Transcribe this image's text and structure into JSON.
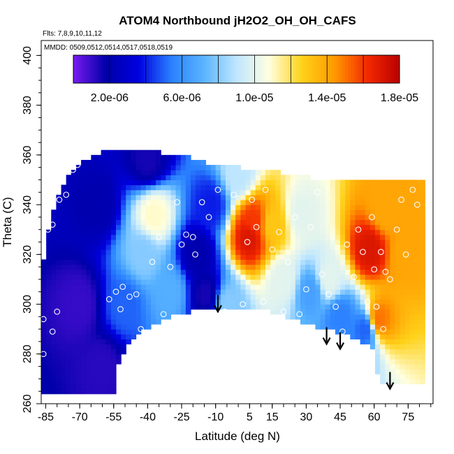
{
  "chart_data": {
    "type": "heatmap",
    "title": "ATOM4 Northbound jH2O2_OH_OH_CAFS",
    "annotations": [
      "Flts: 7,8,9,10,11,12",
      "MMDD: 0509,0512,0514,0517,0518,0519"
    ],
    "xlabel": "Latitude (deg N)",
    "ylabel": "Theta (C)",
    "xlim": [
      -87,
      86
    ],
    "ylim": [
      260,
      406
    ],
    "x_ticks": [
      -85,
      -70,
      -55,
      -40,
      -25,
      -10,
      5,
      15,
      30,
      45,
      60,
      75
    ],
    "x_tick_labels": [
      "-85",
      "-70",
      "-55",
      "-40",
      "-25",
      "-10",
      "5",
      "15",
      "30",
      "45",
      "60",
      "75"
    ],
    "y_ticks": [
      260,
      280,
      300,
      320,
      340,
      360,
      380,
      400
    ],
    "y_tick_labels": [
      "260",
      "280",
      "300",
      "320",
      "340",
      "360",
      "380",
      "400"
    ],
    "colorbar": {
      "range": [
        0,
        1.8e-05
      ],
      "ticks": [
        2e-06,
        6e-06,
        1e-05,
        1.4e-05,
        1.8e-05
      ],
      "tick_labels": [
        "2.0e-06",
        "6.0e-06",
        "1.0e-05",
        "1.4e-05",
        "1.8e-05"
      ],
      "colors": [
        "#7a1af0",
        "#0000a8",
        "#0000e0",
        "#2a80ff",
        "#5ab4ff",
        "#bfe6ff",
        "#ffffe0",
        "#ffd21a",
        "#ff9a00",
        "#f52a00",
        "#b80000"
      ]
    },
    "arrows": [
      {
        "lat": -9,
        "theta": 297
      },
      {
        "lat": 39,
        "theta": 284
      },
      {
        "lat": 45,
        "theta": 282
      },
      {
        "lat": 67,
        "theta": 266
      }
    ],
    "floor": [
      [
        -54,
        264
      ],
      [
        -53,
        276
      ],
      [
        -49,
        284
      ],
      [
        -44,
        289
      ],
      [
        -39,
        291
      ],
      [
        -30,
        295
      ],
      [
        -20,
        297
      ],
      [
        -10,
        298
      ],
      [
        0,
        299
      ],
      [
        10,
        298
      ],
      [
        17,
        296
      ],
      [
        23,
        294
      ],
      [
        30,
        292
      ],
      [
        36,
        290
      ],
      [
        42,
        289
      ],
      [
        50,
        287
      ],
      [
        57,
        284
      ],
      [
        60,
        281
      ],
      [
        61,
        276
      ],
      [
        62,
        268
      ]
    ],
    "ceiling": [
      [
        -87,
        310
      ],
      [
        -85,
        326
      ],
      [
        -81,
        340
      ],
      [
        -75,
        351
      ],
      [
        -68,
        358
      ],
      [
        -60,
        361
      ],
      [
        -50,
        361
      ],
      [
        -35,
        361
      ],
      [
        -25,
        360
      ],
      [
        -10,
        356
      ],
      [
        0,
        355
      ],
      [
        10,
        354
      ],
      [
        25,
        352
      ],
      [
        40,
        350
      ],
      [
        50,
        350
      ],
      [
        60,
        349
      ],
      [
        75,
        349
      ],
      [
        81,
        349
      ]
    ],
    "field_centers": [
      {
        "lat": -70,
        "theta": 300,
        "value": 1e-06
      },
      {
        "lat": -60,
        "theta": 275,
        "value": 1.2e-06
      },
      {
        "lat": -62,
        "theta": 340,
        "value": 2e-06
      },
      {
        "lat": -50,
        "theta": 300,
        "value": 5e-06
      },
      {
        "lat": -42,
        "theta": 320,
        "value": 8e-06
      },
      {
        "lat": -37,
        "theta": 336,
        "value": 1.1e-05
      },
      {
        "lat": -30,
        "theta": 305,
        "value": 7e-06
      },
      {
        "lat": -18,
        "theta": 320,
        "value": 2e-06
      },
      {
        "lat": -12,
        "theta": 340,
        "value": 4e-06
      },
      {
        "lat": -14,
        "theta": 304,
        "value": 1.5e-06
      },
      {
        "lat": -5,
        "theta": 300,
        "value": 8e-06
      },
      {
        "lat": 7,
        "theta": 333,
        "value": 1.6e-05
      },
      {
        "lat": 5,
        "theta": 327,
        "value": 1.7e-05
      },
      {
        "lat": 15,
        "theta": 332,
        "value": 1.3e-05
      },
      {
        "lat": 20,
        "theta": 310,
        "value": 1e-05
      },
      {
        "lat": 28,
        "theta": 336,
        "value": 1e-05
      },
      {
        "lat": 32,
        "theta": 305,
        "value": 6.5e-06
      },
      {
        "lat": 40,
        "theta": 310,
        "value": 1e-05
      },
      {
        "lat": 45,
        "theta": 295,
        "value": 5.5e-06
      },
      {
        "lat": 58,
        "theta": 322,
        "value": 1.7e-05
      },
      {
        "lat": 65,
        "theta": 338,
        "value": 1.4e-05
      },
      {
        "lat": 74,
        "theta": 320,
        "value": 1.4e-05
      },
      {
        "lat": 62,
        "theta": 294,
        "value": 1.5e-05
      },
      {
        "lat": 56,
        "theta": 290,
        "value": 5e-06
      },
      {
        "lat": 0,
        "theta": 352,
        "value": 9e-06
      },
      {
        "lat": -40,
        "theta": 358,
        "value": 1.5e-06
      }
    ],
    "points": [
      [
        -86,
        294
      ],
      [
        -86,
        280
      ],
      [
        -84,
        330
      ],
      [
        -82,
        332
      ],
      [
        -79,
        342
      ],
      [
        -76,
        344
      ],
      [
        -73,
        354
      ],
      [
        -71,
        356
      ],
      [
        -80,
        297
      ],
      [
        -82,
        289
      ],
      [
        -57,
        302
      ],
      [
        -54,
        305
      ],
      [
        -52,
        298
      ],
      [
        -51,
        307
      ],
      [
        -48,
        303
      ],
      [
        -45,
        304
      ],
      [
        -43,
        290
      ],
      [
        -38,
        317
      ],
      [
        -35,
        327
      ],
      [
        -33,
        296
      ],
      [
        -30,
        315
      ],
      [
        -27,
        341
      ],
      [
        -25,
        324
      ],
      [
        -23,
        328
      ],
      [
        -20,
        327
      ],
      [
        -19,
        320
      ],
      [
        -16,
        341
      ],
      [
        -13,
        335
      ],
      [
        -9,
        346
      ],
      [
        -6,
        297
      ],
      [
        -2,
        344
      ],
      [
        2,
        300
      ],
      [
        4,
        325
      ],
      [
        6,
        342
      ],
      [
        8,
        331
      ],
      [
        11,
        301
      ],
      [
        12,
        346
      ],
      [
        15,
        322
      ],
      [
        18,
        329
      ],
      [
        20,
        297
      ],
      [
        22,
        317
      ],
      [
        25,
        335
      ],
      [
        27,
        296
      ],
      [
        30,
        306
      ],
      [
        32,
        331
      ],
      [
        35,
        345
      ],
      [
        37,
        312
      ],
      [
        40,
        304
      ],
      [
        43,
        299
      ],
      [
        46,
        289
      ],
      [
        48,
        324
      ],
      [
        51,
        311
      ],
      [
        53,
        330
      ],
      [
        55,
        321
      ],
      [
        57,
        301
      ],
      [
        59,
        335
      ],
      [
        61,
        299
      ],
      [
        63,
        321
      ],
      [
        65,
        313
      ],
      [
        67,
        310
      ],
      [
        70,
        330
      ],
      [
        72,
        342
      ],
      [
        74,
        320
      ],
      [
        77,
        346
      ],
      [
        79,
        340
      ],
      [
        60,
        314
      ],
      [
        64,
        290
      ]
    ]
  }
}
